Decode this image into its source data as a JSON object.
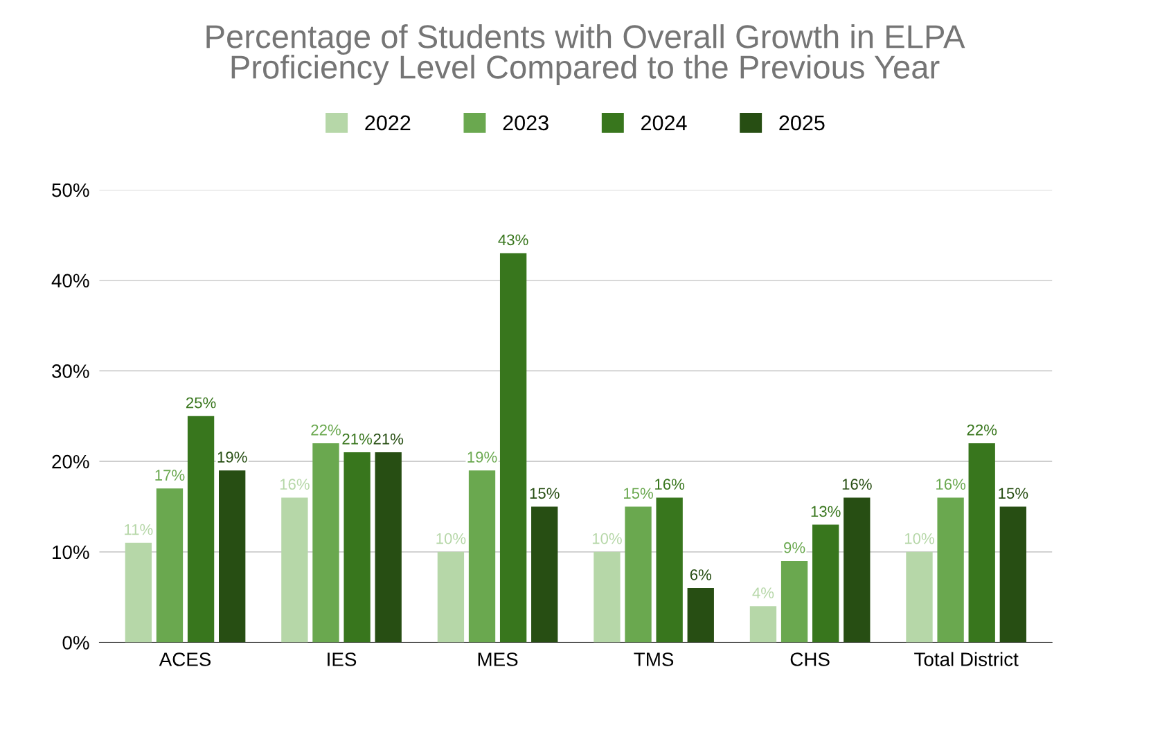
{
  "chart_data": {
    "type": "bar",
    "title": "Percentage of Students with Overall Growth in ELPA\nProficiency Level Compared to the Previous Year",
    "categories": [
      "ACES",
      "IES",
      "MES",
      "TMS",
      "CHS",
      "Total District"
    ],
    "series": [
      {
        "name": "2022",
        "color": "#b6d7a8",
        "values": [
          11,
          16,
          10,
          10,
          4,
          10
        ],
        "value_labels": [
          "11%",
          "16%",
          "10%",
          "10%",
          "4%",
          "10%"
        ]
      },
      {
        "name": "2023",
        "color": "#6aa84f",
        "values": [
          17,
          22,
          19,
          15,
          9,
          16
        ],
        "value_labels": [
          "17%",
          "22%",
          "19%",
          "15%",
          "9%",
          "16%"
        ]
      },
      {
        "name": "2024",
        "color": "#38761d",
        "values": [
          25,
          21,
          43,
          16,
          13,
          22
        ],
        "value_labels": [
          "25%",
          "21%",
          "43%",
          "16%",
          "13%",
          "22%"
        ]
      },
      {
        "name": "2025",
        "color": "#274e13",
        "values": [
          19,
          21,
          15,
          6,
          16,
          15
        ],
        "value_labels": [
          "19%",
          "21%",
          "15%",
          "6%",
          "16%",
          "15%"
        ]
      }
    ],
    "ylim": [
      0,
      50
    ],
    "yticks": [
      {
        "value": 0,
        "label": "0%"
      },
      {
        "value": 10,
        "label": "10%"
      },
      {
        "value": 20,
        "label": "20%"
      },
      {
        "value": 30,
        "label": "30%"
      },
      {
        "value": 40,
        "label": "40%"
      },
      {
        "value": 50,
        "label": "50%"
      }
    ],
    "grid": "y",
    "legend": "top"
  }
}
